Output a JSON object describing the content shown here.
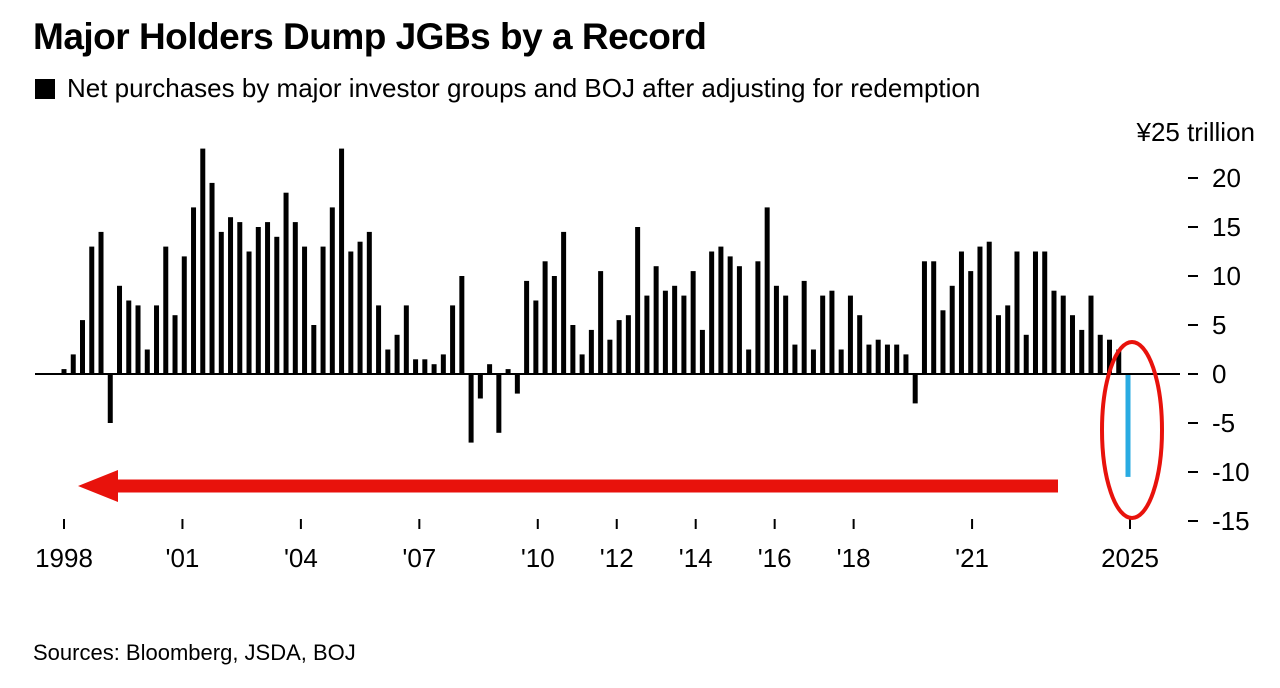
{
  "title": "Major Holders Dump JGBs by a Record",
  "legend": {
    "label": "Net purchases by major investor groups and BOJ after adjusting for redemption",
    "color": "#000000"
  },
  "source": "Sources: Bloomberg, JSDA, BOJ",
  "chart_data": {
    "type": "bar",
    "title": "Major Holders Dump JGBs by a Record",
    "series": [
      {
        "name": "Net purchases by major investor groups and BOJ after adjusting for redemption",
        "color": "#000000",
        "highlight_color": "#29abe2",
        "values": [
          0.5,
          2,
          5.5,
          13,
          14.5,
          -5,
          9,
          7.5,
          7,
          2.5,
          7,
          13,
          6,
          12,
          17,
          23,
          19.5,
          14.5,
          16,
          15.5,
          12.5,
          15,
          15.5,
          14,
          18.5,
          15.5,
          13,
          5,
          13,
          17,
          23,
          12.5,
          13.5,
          14.5,
          7,
          2.5,
          4,
          7,
          1.5,
          1.5,
          1,
          2,
          7,
          10,
          -7,
          -2.5,
          1,
          -6,
          0.5,
          -2,
          9.5,
          7.5,
          11.5,
          10,
          14.5,
          5,
          2,
          4.5,
          10.5,
          3.5,
          5.5,
          6,
          15,
          8,
          11,
          8.5,
          9,
          8,
          10.5,
          4.5,
          12.5,
          13,
          12,
          11,
          2.5,
          11.5,
          17,
          9,
          8,
          3,
          9.5,
          2.5,
          8,
          8.5,
          2.5,
          8,
          6,
          3,
          3.5,
          3,
          3,
          2,
          -3,
          11.5,
          11.5,
          6.5,
          9,
          12.5,
          10.5,
          13,
          13.5,
          6,
          7,
          12.5,
          4,
          12.5,
          12.5,
          8.5,
          8,
          6,
          4.5,
          8,
          4,
          3.5,
          2.5,
          -10.5
        ]
      }
    ],
    "ylim": [
      -15,
      25
    ],
    "y_ticks": [
      -15,
      -10,
      -5,
      0,
      5,
      10,
      15,
      20
    ],
    "y_unit_label": "¥25 trillion",
    "x_tick_labels": [
      "1998",
      "'01",
      "'04",
      "'07",
      "'10",
      "'12",
      "'14",
      "'16",
      "'18",
      "'21",
      "2025"
    ],
    "x_ticks": [
      1998,
      2001,
      2004,
      2007,
      2010,
      2012,
      2014,
      2016,
      2018,
      2021,
      2025
    ],
    "x_range": [
      1998,
      2025
    ],
    "grid": false,
    "annotations": [
      {
        "type": "arrow",
        "direction": "left",
        "color": "#e8120c"
      },
      {
        "type": "ellipse",
        "target": "last-bar",
        "color": "#e8120c"
      }
    ]
  }
}
